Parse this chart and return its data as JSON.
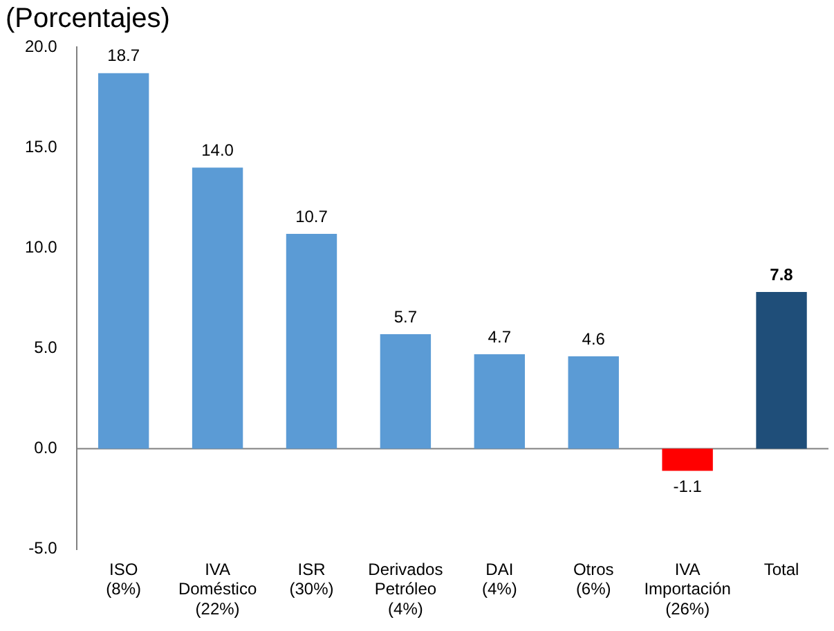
{
  "chart_data": {
    "type": "bar",
    "title": "(Porcentajes)",
    "categories": [
      "ISO\n(8%)",
      "IVA\nDoméstico\n(22%)",
      "ISR\n(30%)",
      "Derivados\nPetróleo\n(4%)",
      "DAI\n(4%)",
      "Otros\n(6%)",
      "IVA\nImportación\n(26%)",
      "Total"
    ],
    "values": [
      18.7,
      14.0,
      10.7,
      5.7,
      4.7,
      4.6,
      -1.1,
      7.8
    ],
    "colors": [
      "#5b9bd5",
      "#5b9bd5",
      "#5b9bd5",
      "#5b9bd5",
      "#5b9bd5",
      "#5b9bd5",
      "#ff0000",
      "#1f4e79"
    ],
    "value_labels": [
      "18.7",
      "14.0",
      "10.7",
      "5.7",
      "4.7",
      "4.6",
      "-1.1",
      "7.8"
    ],
    "ylim": [
      -5,
      20
    ],
    "yticks": [
      {
        "value": -5,
        "label": "-5.0"
      },
      {
        "value": 0,
        "label": "0.0"
      },
      {
        "value": 5,
        "label": "5.0"
      },
      {
        "value": 10,
        "label": "10.0"
      },
      {
        "value": 15,
        "label": "15.0"
      },
      {
        "value": 20,
        "label": "20.0"
      }
    ],
    "ref_lines": [
      {
        "axis": "y",
        "value": 0,
        "color": "#808080"
      }
    ],
    "grid": false,
    "legend": false
  }
}
